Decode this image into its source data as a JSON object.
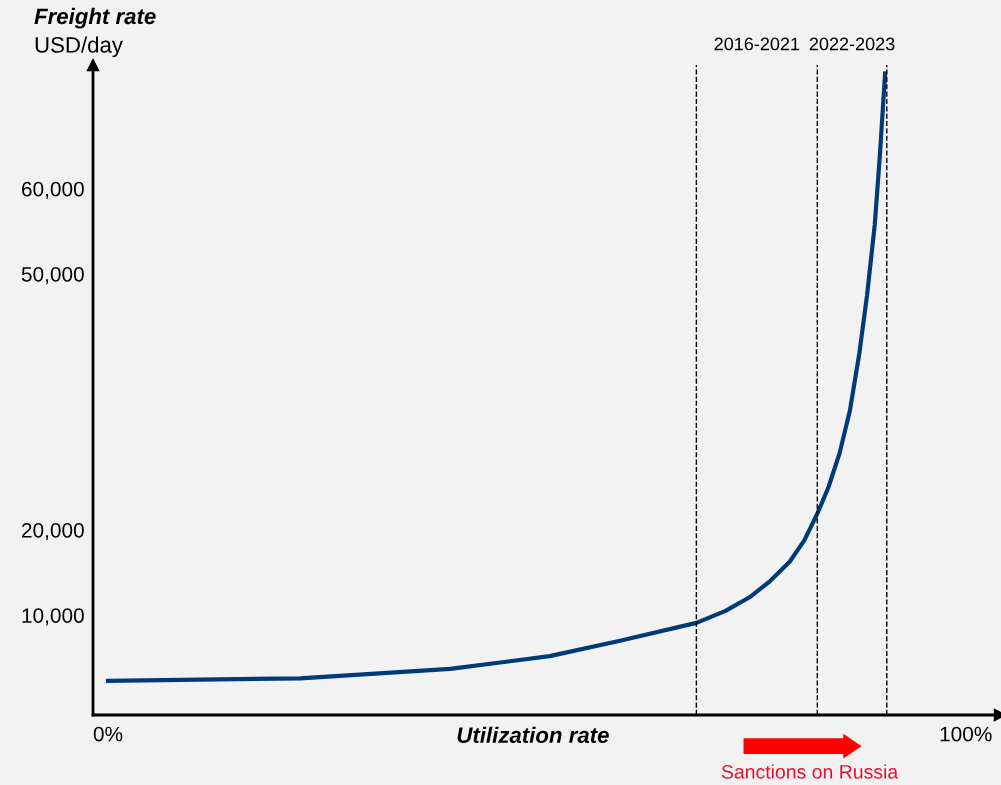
{
  "chart_data": {
    "type": "line",
    "xlabel": "Utilization rate",
    "ylabel": "Freight rate",
    "annotations": [
      "USD/day",
      "Sanctions on Russia",
      "2016-2021",
      "2022-2023"
    ],
    "x": [
      0,
      22.4,
      39.9,
      51.5,
      59.7,
      68.6,
      72,
      74.8,
      77.2,
      79.5,
      81.2,
      82.7,
      84,
      85.3,
      86.5,
      87.6,
      88.5,
      89.4,
      90,
      90.6
    ],
    "series": [
      {
        "color": "#003a78",
        "values": [
          2300,
          2600,
          3700,
          5200,
          7000,
          9100,
          10500,
          12100,
          14000,
          16300,
          18800,
          21900,
          25000,
          29000,
          34000,
          40700,
          47500,
          55800,
          64000,
          73500
        ]
      }
    ],
    "xlim": [
      -1.75,
      104
    ],
    "ylim": [
      -1700,
      74500
    ],
    "xticks": [
      {
        "value": 0,
        "label": "0%"
      },
      {
        "value": 100,
        "label": "100%"
      }
    ],
    "yticks": [
      {
        "value": 10000,
        "label": "10,000"
      },
      {
        "value": 20000,
        "label": "20,000"
      },
      {
        "value": 50000,
        "label": "50,000"
      },
      {
        "value": 60000,
        "label": "60,000"
      }
    ],
    "ref_lines": [
      {
        "axis": "x",
        "value": 68.6,
        "line_style": "dashed"
      },
      {
        "axis": "x",
        "value": 82.7,
        "line_style": "dashed"
      },
      {
        "axis": "x",
        "value": 90.8,
        "line_style": "dashed"
      }
    ],
    "grid": false,
    "legend": false,
    "marker": "none",
    "line_style": "solid"
  }
}
